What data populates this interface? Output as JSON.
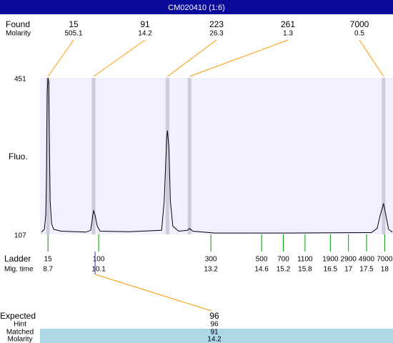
{
  "chart_data": {
    "type": "line",
    "title": "CM020410 (1:6)",
    "y_label": "Fluo.",
    "ylim": [
      107,
      451
    ],
    "yticks": [
      107,
      451
    ],
    "xlim": [
      8.48,
      18.23
    ],
    "color": "#000000",
    "x": [
      8.52,
      8.6,
      8.64,
      8.66,
      8.68,
      8.7,
      8.72,
      8.74,
      8.76,
      8.8,
      8.86,
      9.06,
      9.75,
      9.88,
      9.94,
      9.96,
      10.0,
      10.06,
      10.14,
      10.93,
      11.84,
      11.91,
      11.98,
      12.0,
      12.04,
      12.08,
      12.15,
      12.31,
      12.55,
      12.61,
      12.7,
      13.3,
      15.27,
      17.63,
      17.79,
      17.88,
      17.97,
      18.03,
      18.11,
      18.21
    ],
    "values": [
      112,
      118,
      150,
      250,
      420,
      451,
      440,
      300,
      180,
      130,
      118,
      114,
      112,
      116,
      150,
      159,
      150,
      125,
      114,
      113,
      116,
      180,
      320,
      335,
      300,
      180,
      125,
      114,
      116,
      120,
      114,
      110,
      110,
      111,
      120,
      150,
      175,
      150,
      118,
      112
    ],
    "found": {
      "label": "Found",
      "sublabel": "Molarity",
      "sizes": [
        15,
        91,
        223,
        261,
        7000
      ],
      "molarity": [
        505.1,
        14.2,
        26.3,
        1.3,
        0.5
      ],
      "times": [
        8.7,
        9.96,
        12.0,
        12.61,
        17.97
      ]
    },
    "ladder": {
      "label": "Ladder",
      "sublabel": "Mig. time",
      "sizes": [
        15,
        100,
        300,
        500,
        700,
        1100,
        1900,
        2900,
        4900,
        7000
      ],
      "times": [
        8.7,
        10.1,
        13.2,
        14.6,
        15.2,
        15.8,
        16.5,
        17,
        17.5,
        18
      ]
    },
    "expected": {
      "label": "Expected",
      "value": 96,
      "hint_label": "Hint",
      "hint": 96,
      "matched_label": "Matched",
      "matched": 91,
      "molarity_label": "Molarity",
      "molarity": 14.2
    }
  }
}
